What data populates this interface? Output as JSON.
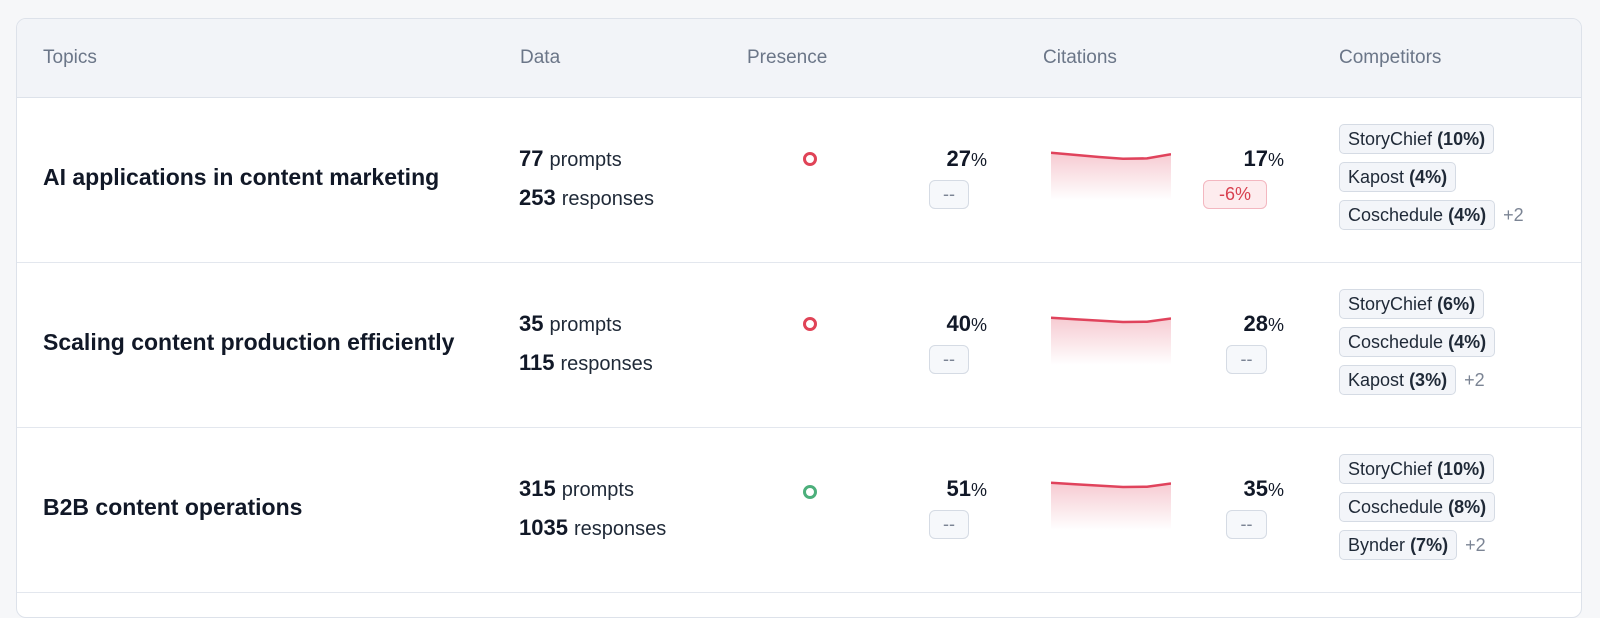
{
  "headers": {
    "topics": "Topics",
    "data": "Data",
    "presence": "Presence",
    "citations": "Citations",
    "competitors": "Competitors"
  },
  "colors": {
    "negative": "#e04357",
    "positive": "#4caf7b",
    "spark_line": "#e0435c"
  },
  "rows": [
    {
      "topic": "AI applications in content marketing",
      "prompts": "77",
      "prompts_label": "prompts",
      "responses": "253",
      "responses_label": "responses",
      "presence_status": "red",
      "presence_pct": "27",
      "presence_change": "--",
      "citations_pct": "17",
      "citations_change": "-6%",
      "citations_change_negative": true,
      "spark": [
        0.2,
        0.35,
        0.5,
        0.62,
        0.6,
        0.3
      ],
      "competitors": [
        {
          "name": "StoryChief",
          "pct": "(10%)"
        },
        {
          "name": "Kapost",
          "pct": "(4%)"
        },
        {
          "name": "Coschedule",
          "pct": "(4%)"
        }
      ],
      "more": "+2"
    },
    {
      "topic": "Scaling content production efficiently",
      "prompts": "35",
      "prompts_label": "prompts",
      "responses": "115",
      "responses_label": "responses",
      "presence_status": "red",
      "presence_pct": "40",
      "presence_change": "--",
      "citations_pct": "28",
      "citations_change": "--",
      "citations_change_negative": false,
      "spark": [
        0.2,
        0.3,
        0.4,
        0.5,
        0.48,
        0.25
      ],
      "competitors": [
        {
          "name": "StoryChief",
          "pct": "(6%)"
        },
        {
          "name": "Coschedule",
          "pct": "(4%)"
        },
        {
          "name": "Kapost",
          "pct": "(3%)"
        }
      ],
      "more": "+2"
    },
    {
      "topic": "B2B content operations",
      "prompts": "315",
      "prompts_label": "prompts",
      "responses": "1035",
      "responses_label": "responses",
      "presence_status": "green",
      "presence_pct": "51",
      "presence_change": "--",
      "citations_pct": "35",
      "citations_change": "--",
      "citations_change_negative": false,
      "spark": [
        0.2,
        0.3,
        0.4,
        0.5,
        0.48,
        0.25
      ],
      "competitors": [
        {
          "name": "StoryChief",
          "pct": "(10%)"
        },
        {
          "name": "Coschedule",
          "pct": "(8%)"
        },
        {
          "name": "Bynder",
          "pct": "(7%)"
        }
      ],
      "more": "+2"
    }
  ],
  "pct_unit": "%"
}
